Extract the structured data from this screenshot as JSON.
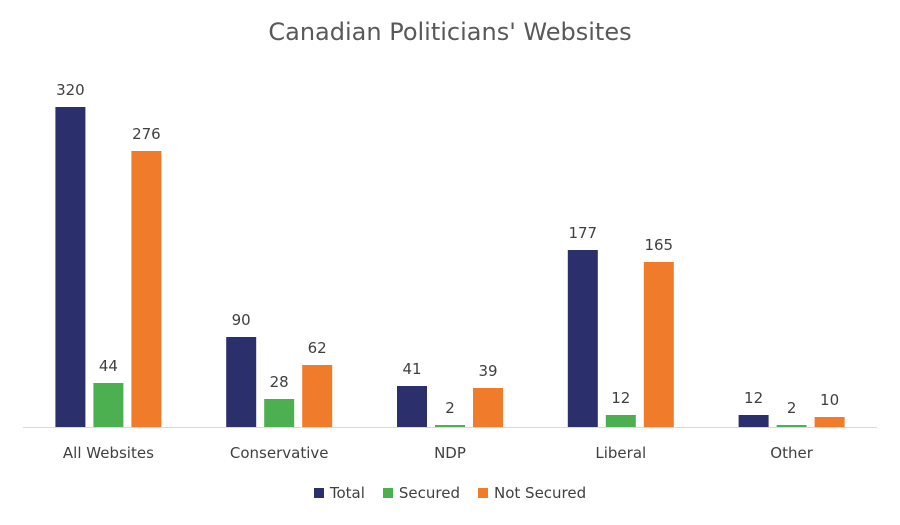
{
  "chart_data": {
    "type": "bar",
    "title": "Canadian Politicians' Websites",
    "categories": [
      "All Websites",
      "Conservative",
      "NDP",
      "Liberal",
      "Other"
    ],
    "series": [
      {
        "name": "Total",
        "color": "#2b2f6b",
        "values": [
          320,
          90,
          41,
          177,
          12
        ]
      },
      {
        "name": "Secured",
        "color": "#4caf50",
        "values": [
          44,
          28,
          2,
          12,
          2
        ]
      },
      {
        "name": "Not Secured",
        "color": "#f07b2a",
        "values": [
          276,
          62,
          39,
          165,
          10
        ]
      }
    ],
    "ylim": [
      0,
      320
    ],
    "grid": false,
    "legend_position": "bottom"
  }
}
